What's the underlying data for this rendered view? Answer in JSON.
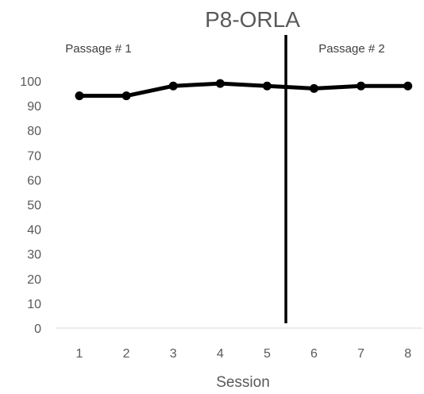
{
  "chart_data": {
    "type": "line",
    "title": "P8-ORLA",
    "xlabel": "Session",
    "ylabel": "",
    "x": [
      1,
      2,
      3,
      4,
      5,
      6,
      7,
      8
    ],
    "series": [
      {
        "values": [
          94,
          94,
          98,
          99,
          98,
          97,
          98,
          98
        ]
      }
    ],
    "ylim": [
      0,
      100
    ],
    "yticks": [
      0,
      10,
      20,
      30,
      40,
      50,
      60,
      70,
      80,
      90,
      100
    ],
    "grid": false,
    "phase_change_after_session": 5,
    "annotations": [
      "Passage # 1",
      "Passage # 2"
    ],
    "colors": {
      "line": "#000000",
      "phase_line": "#000000",
      "text": "#595959",
      "axis": "#d9d9d9"
    }
  }
}
